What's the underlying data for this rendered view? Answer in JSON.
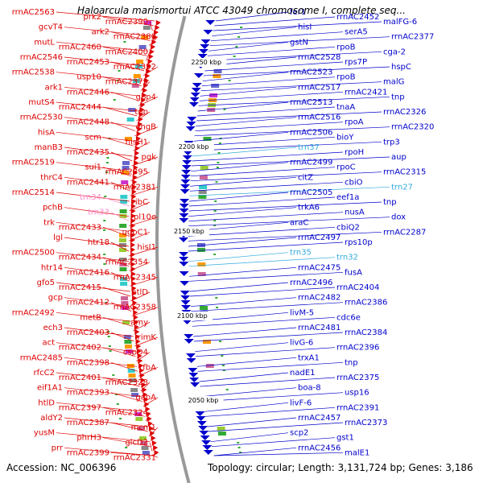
{
  "title": "Haloarcula marismortui ATCC 43049 chromosome I, complete seq...",
  "footer": {
    "accession": "Accession: NC_006396",
    "stats": "Topology: circular; Length: 3,131,724 bp; Genes: 3,186"
  },
  "colors": {
    "forward": "#dd0000",
    "reverse": "#0000cc",
    "trna_forward": "#ff88cc",
    "trna_reverse": "#33aadd",
    "backbone": "#999999"
  },
  "scale_labels": [
    "2250 kbp",
    "2200 kbp",
    "2150 kbp",
    "2100 kbp",
    "2050 kbp"
  ],
  "left_labels": [
    {
      "text": "rrnAC2563",
      "kind": "forward"
    },
    {
      "text": "gcvT4",
      "kind": "forward"
    },
    {
      "text": "mutL",
      "kind": "forward"
    },
    {
      "text": "rrnAC2546",
      "kind": "forward"
    },
    {
      "text": "rrnAC2538",
      "kind": "forward"
    },
    {
      "text": "ark1",
      "kind": "forward"
    },
    {
      "text": "mutS4",
      "kind": "forward"
    },
    {
      "text": "rrnAC2530",
      "kind": "forward"
    },
    {
      "text": "hisA",
      "kind": "forward"
    },
    {
      "text": "manB3",
      "kind": "forward"
    },
    {
      "text": "rrnAC2519",
      "kind": "forward"
    },
    {
      "text": "thrC4",
      "kind": "forward"
    },
    {
      "text": "rrnAC2514",
      "kind": "forward"
    },
    {
      "text": "pchB",
      "kind": "forward"
    },
    {
      "text": "trk",
      "kind": "forward"
    },
    {
      "text": "lgl",
      "kind": "forward"
    },
    {
      "text": "rrnAC2500",
      "kind": "forward"
    },
    {
      "text": "htr14",
      "kind": "forward"
    },
    {
      "text": "gfo5",
      "kind": "forward"
    },
    {
      "text": "gcp",
      "kind": "forward"
    },
    {
      "text": "rrnAC2492",
      "kind": "forward"
    },
    {
      "text": "ech3",
      "kind": "forward"
    },
    {
      "text": "act",
      "kind": "forward"
    },
    {
      "text": "rrnAC2485",
      "kind": "forward"
    },
    {
      "text": "rfcC2",
      "kind": "forward"
    },
    {
      "text": "eif1A1",
      "kind": "forward"
    },
    {
      "text": "htlD",
      "kind": "forward"
    },
    {
      "text": "aldY2",
      "kind": "forward"
    },
    {
      "text": "yusM",
      "kind": "forward"
    },
    {
      "text": "prr",
      "kind": "forward"
    },
    {
      "text": "prk2",
      "kind": "forward"
    },
    {
      "text": "ark2",
      "kind": "forward"
    },
    {
      "text": "rrnAC2460",
      "kind": "forward"
    },
    {
      "text": "rrnAC2453",
      "kind": "forward"
    },
    {
      "text": "usp10",
      "kind": "forward"
    },
    {
      "text": "rrnAC2446",
      "kind": "forward"
    },
    {
      "text": "rrnAC2444",
      "kind": "forward"
    },
    {
      "text": "rrnAC2448",
      "kind": "forward"
    },
    {
      "text": "scm",
      "kind": "forward"
    },
    {
      "text": "rrnAC2435",
      "kind": "forward"
    },
    {
      "text": "sui1",
      "kind": "forward"
    },
    {
      "text": "rrnAC2441",
      "kind": "forward"
    },
    {
      "text": "trn34",
      "kind": "trna_forward"
    },
    {
      "text": "trn33",
      "kind": "trna_forward"
    },
    {
      "text": "rrnAC2433",
      "kind": "forward"
    },
    {
      "text": "htr18",
      "kind": "forward"
    },
    {
      "text": "rrnAC2434",
      "kind": "forward"
    },
    {
      "text": "rrnAC2416",
      "kind": "forward"
    },
    {
      "text": "rrnAC2415",
      "kind": "forward"
    },
    {
      "text": "rrnAC2412",
      "kind": "forward"
    },
    {
      "text": "metB",
      "kind": "forward"
    },
    {
      "text": "rrnAC2403",
      "kind": "forward"
    },
    {
      "text": "rrnAC2402",
      "kind": "forward"
    },
    {
      "text": "rrnAC2398",
      "kind": "forward"
    },
    {
      "text": "rrnAC2401",
      "kind": "forward"
    },
    {
      "text": "rrnAC2393",
      "kind": "forward"
    },
    {
      "text": "rrnAC2397",
      "kind": "forward"
    },
    {
      "text": "rrnAC2387",
      "kind": "forward"
    },
    {
      "text": "phrH3",
      "kind": "forward"
    },
    {
      "text": "rrnAC2399",
      "kind": "forward"
    },
    {
      "text": "rrnAC2390",
      "kind": "forward"
    },
    {
      "text": "rrnAC2380",
      "kind": "forward"
    },
    {
      "text": "rrnAC2400",
      "kind": "forward"
    },
    {
      "text": "rrnAC2392",
      "kind": "forward"
    },
    {
      "text": "rrnAC2379",
      "kind": "forward"
    },
    {
      "text": "gbp4",
      "kind": "forward"
    },
    {
      "text": "tnp",
      "kind": "forward"
    },
    {
      "text": "engB",
      "kind": "forward"
    },
    {
      "text": "hisH1",
      "kind": "forward"
    },
    {
      "text": "pgk",
      "kind": "forward"
    },
    {
      "text": "rrnAC2395",
      "kind": "forward"
    },
    {
      "text": "rrnAC2381",
      "kind": "forward"
    },
    {
      "text": "ribC",
      "kind": "forward"
    },
    {
      "text": "rpl10e",
      "kind": "forward"
    },
    {
      "text": "ugpC1",
      "kind": "forward"
    },
    {
      "text": "hisI1",
      "kind": "forward"
    },
    {
      "text": "rrnAC2354",
      "kind": "forward"
    },
    {
      "text": "rrnAC2345",
      "kind": "forward"
    },
    {
      "text": "htlD",
      "kind": "forward"
    },
    {
      "text": "rrnAC2358",
      "kind": "forward"
    },
    {
      "text": "amy",
      "kind": "forward"
    },
    {
      "text": "rimK",
      "kind": "forward"
    },
    {
      "text": "cspD4",
      "kind": "forward"
    },
    {
      "text": "rfbA",
      "kind": "forward"
    },
    {
      "text": "rrnAC2328",
      "kind": "forward"
    },
    {
      "text": "gapA",
      "kind": "forward"
    },
    {
      "text": "rrnAC2324",
      "kind": "forward"
    },
    {
      "text": "mcm1",
      "kind": "forward"
    },
    {
      "text": "glcD2",
      "kind": "forward"
    },
    {
      "text": "rrnAC2331",
      "kind": "forward"
    }
  ],
  "right_labels": [
    {
      "text": "fer1",
      "kind": "reverse"
    },
    {
      "text": "hisI",
      "kind": "reverse"
    },
    {
      "text": "gstN",
      "kind": "reverse"
    },
    {
      "text": "rrnAC2528",
      "kind": "reverse"
    },
    {
      "text": "rrnAC2523",
      "kind": "reverse"
    },
    {
      "text": "rrnAC2517",
      "kind": "reverse"
    },
    {
      "text": "rrnAC2513",
      "kind": "reverse"
    },
    {
      "text": "rrnAC2516",
      "kind": "reverse"
    },
    {
      "text": "rrnAC2506",
      "kind": "reverse"
    },
    {
      "text": "trn37",
      "kind": "trna_reverse"
    },
    {
      "text": "rrnAC2499",
      "kind": "reverse"
    },
    {
      "text": "citZ",
      "kind": "reverse"
    },
    {
      "text": "rrnAC2505",
      "kind": "reverse"
    },
    {
      "text": "trkA6",
      "kind": "reverse"
    },
    {
      "text": "araC",
      "kind": "reverse"
    },
    {
      "text": "rrnAC2497",
      "kind": "reverse"
    },
    {
      "text": "trn35",
      "kind": "trna_reverse"
    },
    {
      "text": "rrnAC2475",
      "kind": "reverse"
    },
    {
      "text": "rrnAC2496",
      "kind": "reverse"
    },
    {
      "text": "rrnAC2482",
      "kind": "reverse"
    },
    {
      "text": "livM-5",
      "kind": "reverse"
    },
    {
      "text": "rrnAC2481",
      "kind": "reverse"
    },
    {
      "text": "livG-6",
      "kind": "reverse"
    },
    {
      "text": "trxA1",
      "kind": "reverse"
    },
    {
      "text": "nadE1",
      "kind": "reverse"
    },
    {
      "text": "boa-8",
      "kind": "reverse"
    },
    {
      "text": "livF-6",
      "kind": "reverse"
    },
    {
      "text": "rrnAC2457",
      "kind": "reverse"
    },
    {
      "text": "scp2",
      "kind": "reverse"
    },
    {
      "text": "rrnAC2456",
      "kind": "reverse"
    },
    {
      "text": "rrnAC2452",
      "kind": "reverse"
    },
    {
      "text": "serA5",
      "kind": "reverse"
    },
    {
      "text": "rpoB",
      "kind": "reverse"
    },
    {
      "text": "rps7P",
      "kind": "reverse"
    },
    {
      "text": "rpoB",
      "kind": "reverse"
    },
    {
      "text": "rrnAC2421",
      "kind": "reverse"
    },
    {
      "text": "tnaA",
      "kind": "reverse"
    },
    {
      "text": "rpoA",
      "kind": "reverse"
    },
    {
      "text": "bioY",
      "kind": "reverse"
    },
    {
      "text": "rpoH",
      "kind": "reverse"
    },
    {
      "text": "rpoC",
      "kind": "reverse"
    },
    {
      "text": "cbiO",
      "kind": "reverse"
    },
    {
      "text": "eef1a",
      "kind": "reverse"
    },
    {
      "text": "nusA",
      "kind": "reverse"
    },
    {
      "text": "cbiQ2",
      "kind": "reverse"
    },
    {
      "text": "rps10p",
      "kind": "reverse"
    },
    {
      "text": "trn32",
      "kind": "trna_reverse"
    },
    {
      "text": "fusA",
      "kind": "reverse"
    },
    {
      "text": "rrnAC2404",
      "kind": "reverse"
    },
    {
      "text": "rrnAC2386",
      "kind": "reverse"
    },
    {
      "text": "cdc6e",
      "kind": "reverse"
    },
    {
      "text": "rrnAC2384",
      "kind": "reverse"
    },
    {
      "text": "rrnAC2396",
      "kind": "reverse"
    },
    {
      "text": "tnp",
      "kind": "reverse"
    },
    {
      "text": "rrnAC2375",
      "kind": "reverse"
    },
    {
      "text": "usp16",
      "kind": "reverse"
    },
    {
      "text": "rrnAC2391",
      "kind": "reverse"
    },
    {
      "text": "rrnAC2373",
      "kind": "reverse"
    },
    {
      "text": "gst1",
      "kind": "reverse"
    },
    {
      "text": "malE1",
      "kind": "reverse"
    },
    {
      "text": "malFG-6",
      "kind": "reverse"
    },
    {
      "text": "rrnAC2377",
      "kind": "reverse"
    },
    {
      "text": "cga-2",
      "kind": "reverse"
    },
    {
      "text": "hspC",
      "kind": "reverse"
    },
    {
      "text": "malG",
      "kind": "reverse"
    },
    {
      "text": "tnp",
      "kind": "reverse"
    },
    {
      "text": "rrnAC2326",
      "kind": "reverse"
    },
    {
      "text": "rrnAC2320",
      "kind": "reverse"
    },
    {
      "text": "trp3",
      "kind": "reverse"
    },
    {
      "text": "aup",
      "kind": "reverse"
    },
    {
      "text": "rrnAC2315",
      "kind": "reverse"
    },
    {
      "text": "trn27",
      "kind": "trna_reverse"
    },
    {
      "text": "tnp",
      "kind": "reverse"
    },
    {
      "text": "dox",
      "kind": "reverse"
    },
    {
      "text": "rrnAC2287",
      "kind": "reverse"
    }
  ]
}
